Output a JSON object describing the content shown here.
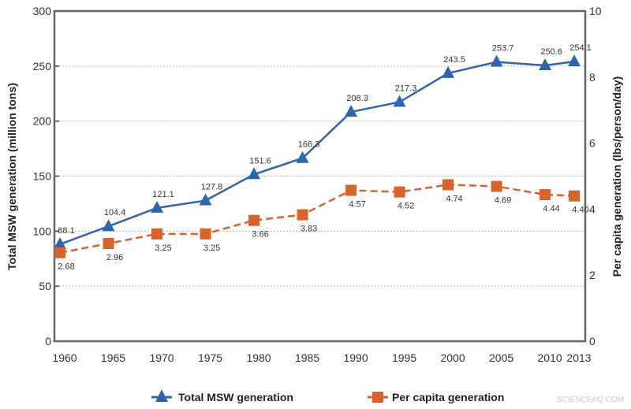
{
  "chart_data": {
    "type": "line",
    "title": "",
    "x": [
      1960,
      1965,
      1970,
      1975,
      1980,
      1985,
      1990,
      1995,
      2000,
      2005,
      2010,
      2013
    ],
    "xticks": [
      "1960",
      "1965",
      "1970",
      "1975",
      "1980",
      "1985",
      "1990",
      "1995",
      "2000",
      "2005",
      "2010",
      "2013"
    ],
    "ylabel": "Total MSW generation (million tons)",
    "ylim": [
      0,
      300
    ],
    "yticks": [
      "0",
      "50",
      "100",
      "150",
      "200",
      "250",
      "300"
    ],
    "y2label": "Per capita generation (lbs/person/day)",
    "y2lim": [
      0,
      10
    ],
    "y2ticks": [
      "0",
      "2",
      "4",
      "6",
      "8",
      "10"
    ],
    "grid": "horizontal dotted",
    "legend": "bottom",
    "series": [
      {
        "name": "Total MSW generation",
        "axis": "left",
        "color": "#2f65ad",
        "marker": "triangle",
        "line": "solid",
        "values": [
          88.1,
          104.4,
          121.1,
          127.8,
          151.6,
          166.3,
          208.3,
          217.3,
          243.5,
          253.7,
          250.6,
          254.1
        ],
        "labels": [
          "88.1",
          "104.4",
          "121.1",
          "127.8",
          "151.6",
          "166.3",
          "208.3",
          "217.3",
          "243.5",
          "253.7",
          "250.6",
          "254.1"
        ]
      },
      {
        "name": "Per capita generation",
        "axis": "right",
        "color": "#d9622b",
        "marker": "square",
        "line": "dashed",
        "values": [
          2.68,
          2.96,
          3.25,
          3.25,
          3.66,
          3.83,
          4.57,
          4.52,
          4.74,
          4.69,
          4.44,
          4.4
        ],
        "labels": [
          "2.68",
          "2.96",
          "3.25",
          "3.25",
          "3.66",
          "3.83",
          "4.57",
          "4.52",
          "4.74",
          "4.69",
          "4.44",
          "4.40"
        ]
      }
    ]
  },
  "watermark": "SCIENCEAQ.COM"
}
